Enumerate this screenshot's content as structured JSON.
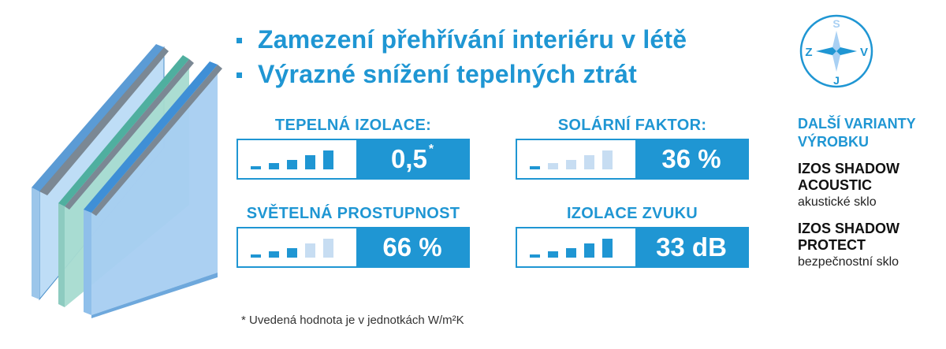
{
  "bullets": [
    "Zamezení přehřívání interiéru v létě",
    "Výrazné snížení tepelných ztrát"
  ],
  "metrics": [
    {
      "label": "TEPELNÁ IZOLACE:",
      "value": "0,5",
      "sup": "*",
      "level": 5
    },
    {
      "label": "SOLÁRNÍ FAKTOR:",
      "value": "36 %",
      "level": 0
    },
    {
      "label": "SVĚTELNÁ PROSTUPNOST",
      "value": "66 %",
      "level": 3
    },
    {
      "label": "IZOLACE ZVUKU",
      "value": "33 dB",
      "level": 5
    }
  ],
  "compass": {
    "n": "S",
    "s": "J",
    "w": "Z",
    "e": "V"
  },
  "variants": {
    "heading_line1": "DALŠÍ VARIANTY",
    "heading_line2": "VÝROBKU",
    "items": [
      {
        "name_line1": "IZOS SHADOW",
        "name_line2": "ACOUSTIC",
        "desc": "akustické sklo"
      },
      {
        "name_line1": "IZOS SHADOW",
        "name_line2": "PROTECT",
        "desc": "bezpečnostní sklo"
      }
    ]
  },
  "footnote": "* Uvedená hodnota je v jednotkách W/m²K",
  "colors": {
    "accent": "#1f96d3",
    "bar_inactive": "#c7ddf2",
    "glass": "#a9d0f3",
    "glass_green": "#9ed6cc"
  }
}
